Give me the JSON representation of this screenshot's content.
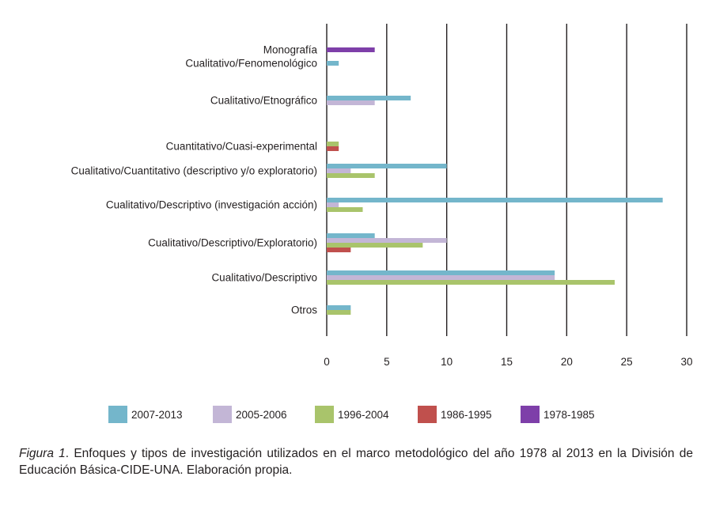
{
  "chart_data": {
    "type": "bar",
    "orientation": "horizontal",
    "title": "",
    "xlabel": "",
    "ylabel": "",
    "xlim": [
      0,
      30
    ],
    "x_ticks": [
      0,
      5,
      10,
      15,
      20,
      25,
      30
    ],
    "grid": true,
    "legend_position": "bottom",
    "categories": [
      "Monografía",
      "Cualitativo/Fenomenológico",
      "Cualitativo/Etnográfico",
      "Cuantitativo/Cuasi-experimental",
      "Cualitativo/Cuantitativo (descriptivo y/o exploratorio)",
      "Cualitativo/Descriptivo (investigación acción)",
      "Cualitativo/Descriptivo/Exploratorio)",
      "Cualitativo/Descriptivo",
      "Otros"
    ],
    "series": [
      {
        "name": "2007-2013",
        "color": "#74b6cb",
        "values": [
          0,
          1,
          7,
          0,
          10,
          28,
          4,
          19,
          2
        ]
      },
      {
        "name": "2005-2006",
        "color": "#c3b6d6",
        "values": [
          0,
          0,
          4,
          0,
          2,
          1,
          10,
          19,
          0
        ]
      },
      {
        "name": "1996-2004",
        "color": "#a9c46b",
        "values": [
          0,
          0,
          0,
          1,
          4,
          3,
          8,
          24,
          2
        ]
      },
      {
        "name": "1986-1995",
        "color": "#c0504d",
        "values": [
          0,
          0,
          0,
          1,
          0,
          0,
          2,
          0,
          0
        ]
      },
      {
        "name": "1978-1985",
        "color": "#7e3fa9",
        "values": [
          4,
          0,
          0,
          0,
          0,
          0,
          0,
          0,
          0
        ]
      }
    ]
  },
  "caption": {
    "figure_label": "Figura 1",
    "text": ". Enfoques y tipos de investigación utilizados en el marco metodológico del año 1978 al 2013 en la División de Educación Básica-CIDE-UNA. Elaboración propia."
  }
}
